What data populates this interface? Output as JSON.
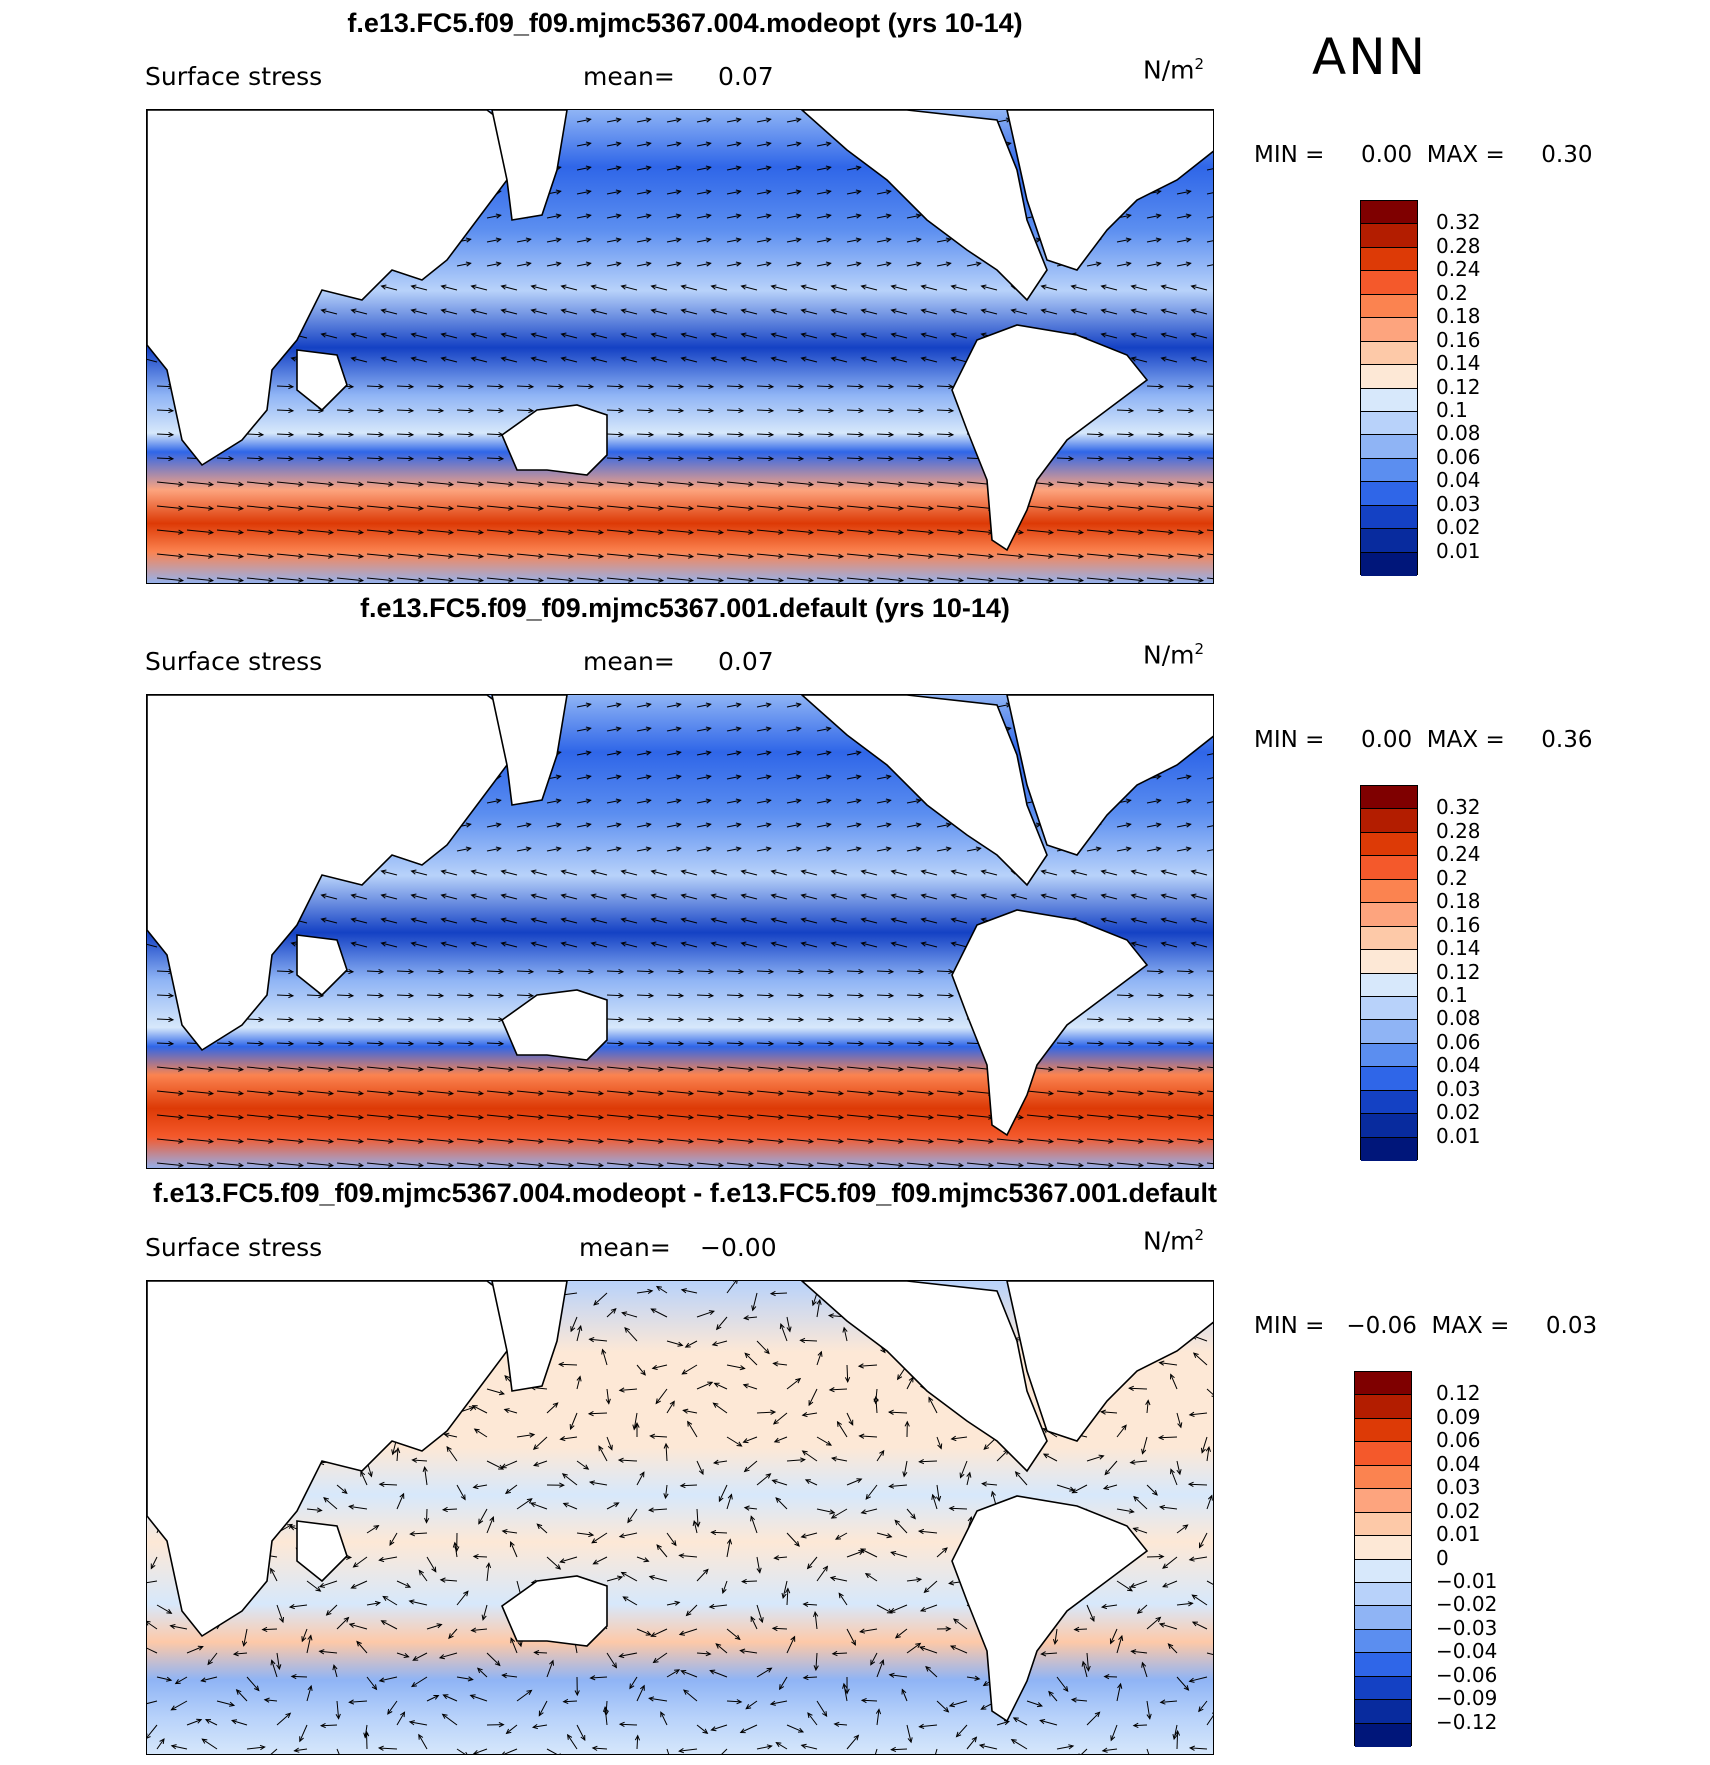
{
  "season": "ANN",
  "panels": [
    {
      "title": "f.e13.FC5.f09_f09.mjmc5367.004.modeopt (yrs 10-14)",
      "variable": "Surface stress",
      "mean_label": "mean=",
      "mean_value": "0.07",
      "units_base": "N/m",
      "units_exp": "2",
      "min_max": "MIN =     0.00  MAX =     0.30",
      "colorbar": {
        "levels": [
          "0.32",
          "0.28",
          "0.24",
          "0.2",
          "0.18",
          "0.16",
          "0.14",
          "0.12",
          "0.1",
          "0.08",
          "0.06",
          "0.04",
          "0.03",
          "0.02",
          "0.01"
        ],
        "colors": [
          "#7f0000",
          "#b31d00",
          "#dd3a06",
          "#f4592b",
          "#fb8350",
          "#fda47e",
          "#fdc9a8",
          "#fde8d6",
          "#d7e8fb",
          "#b8d2fa",
          "#8fb4f5",
          "#5b8ef0",
          "#2f66e8",
          "#1441c4",
          "#082b9e",
          "#00167a"
        ]
      }
    },
    {
      "title": "f.e13.FC5.f09_f09.mjmc5367.001.default (yrs 10-14)",
      "variable": "Surface stress",
      "mean_label": "mean=",
      "mean_value": "0.07",
      "units_base": "N/m",
      "units_exp": "2",
      "min_max": "MIN =     0.00  MAX =     0.36",
      "colorbar": {
        "levels": [
          "0.32",
          "0.28",
          "0.24",
          "0.2",
          "0.18",
          "0.16",
          "0.14",
          "0.12",
          "0.1",
          "0.08",
          "0.06",
          "0.04",
          "0.03",
          "0.02",
          "0.01"
        ],
        "colors": [
          "#7f0000",
          "#b31d00",
          "#dd3a06",
          "#f4592b",
          "#fb8350",
          "#fda47e",
          "#fdc9a8",
          "#fde8d6",
          "#d7e8fb",
          "#b8d2fa",
          "#8fb4f5",
          "#5b8ef0",
          "#2f66e8",
          "#1441c4",
          "#082b9e",
          "#00167a"
        ]
      }
    },
    {
      "title": "f.e13.FC5.f09_f09.mjmc5367.004.modeopt - f.e13.FC5.f09_f09.mjmc5367.001.default",
      "variable": "Surface stress",
      "mean_label": "mean=",
      "mean_value": "−0.00",
      "units_base": "N/m",
      "units_exp": "2",
      "min_max": "MIN =   −0.06  MAX =     0.03",
      "colorbar": {
        "levels": [
          "0.12",
          "0.09",
          "0.06",
          "0.04",
          "0.03",
          "0.02",
          "0.01",
          "0",
          "−0.01",
          "−0.02",
          "−0.03",
          "−0.04",
          "−0.06",
          "−0.09",
          "−0.12"
        ],
        "colors": [
          "#7f0000",
          "#b31d00",
          "#dd3a06",
          "#f4592b",
          "#fb8350",
          "#fda47e",
          "#fdc9a8",
          "#fde8d6",
          "#d7e8fb",
          "#b8d2fa",
          "#8fb4f5",
          "#5b8ef0",
          "#2f66e8",
          "#1441c4",
          "#082b9e",
          "#00167a"
        ]
      }
    }
  ]
}
